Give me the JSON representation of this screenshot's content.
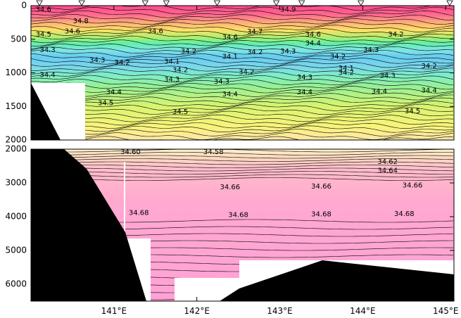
{
  "chart_data": [
    {
      "type": "heatmap",
      "panel": "upper",
      "y_range": [
        0,
        2000
      ],
      "y_ticks": [
        0,
        500,
        1000,
        1500,
        2000
      ],
      "y_tick_labels": [
        "0",
        "500",
        "1000",
        "1500",
        "2000"
      ],
      "x_range": [
        140.0,
        145.1
      ],
      "station_markers_count": 9,
      "contour_labels": [
        {
          "text": "34.6",
          "x": 140.15,
          "y": 60
        },
        {
          "text": "34.9",
          "x": 143.1,
          "y": 60
        },
        {
          "text": "34.8",
          "x": 140.6,
          "y": 230
        },
        {
          "text": "34.6",
          "x": 140.5,
          "y": 380
        },
        {
          "text": "34.5",
          "x": 140.15,
          "y": 430
        },
        {
          "text": "34.6",
          "x": 141.5,
          "y": 380
        },
        {
          "text": "34.7",
          "x": 142.7,
          "y": 390
        },
        {
          "text": "34.6",
          "x": 142.4,
          "y": 470
        },
        {
          "text": "34.6",
          "x": 143.4,
          "y": 430
        },
        {
          "text": "34.4",
          "x": 143.4,
          "y": 560
        },
        {
          "text": "34.2",
          "x": 144.4,
          "y": 430
        },
        {
          "text": "34.3",
          "x": 140.2,
          "y": 660
        },
        {
          "text": "34.2",
          "x": 141.9,
          "y": 680
        },
        {
          "text": "34.1",
          "x": 142.4,
          "y": 760
        },
        {
          "text": "34.2",
          "x": 142.7,
          "y": 690
        },
        {
          "text": "34.3",
          "x": 143.1,
          "y": 680
        },
        {
          "text": "34.2",
          "x": 143.7,
          "y": 760
        },
        {
          "text": "34.3",
          "x": 144.1,
          "y": 660
        },
        {
          "text": "34.3",
          "x": 140.8,
          "y": 810
        },
        {
          "text": "34.2",
          "x": 141.1,
          "y": 850
        },
        {
          "text": "34.1",
          "x": 141.7,
          "y": 830
        },
        {
          "text": "34.2",
          "x": 141.8,
          "y": 960
        },
        {
          "text": "34.2",
          "x": 142.6,
          "y": 990
        },
        {
          "text": "34.1",
          "x": 143.8,
          "y": 930
        },
        {
          "text": "34.2",
          "x": 144.8,
          "y": 900
        },
        {
          "text": "34.2",
          "x": 143.8,
          "y": 1000
        },
        {
          "text": "34.3",
          "x": 141.7,
          "y": 1100
        },
        {
          "text": "34.3",
          "x": 142.3,
          "y": 1130
        },
        {
          "text": "34.3",
          "x": 143.3,
          "y": 1070
        },
        {
          "text": "34.3",
          "x": 144.3,
          "y": 1040
        },
        {
          "text": "34.4",
          "x": 140.2,
          "y": 1030
        },
        {
          "text": "34.4",
          "x": 141.0,
          "y": 1290
        },
        {
          "text": "34.4",
          "x": 142.4,
          "y": 1320
        },
        {
          "text": "34.4",
          "x": 143.3,
          "y": 1290
        },
        {
          "text": "34.4",
          "x": 144.2,
          "y": 1280
        },
        {
          "text": "34.4",
          "x": 144.8,
          "y": 1260
        },
        {
          "text": "34.5",
          "x": 140.9,
          "y": 1450
        },
        {
          "text": "34.5",
          "x": 141.8,
          "y": 1580
        },
        {
          "text": "34.5",
          "x": 144.6,
          "y": 1570
        }
      ]
    },
    {
      "type": "heatmap",
      "panel": "lower",
      "y_range": [
        2000,
        6500
      ],
      "y_ticks": [
        2000,
        3000,
        4000,
        5000,
        6000
      ],
      "y_tick_labels": [
        "2000",
        "3000",
        "4000",
        "5000",
        "6000"
      ],
      "x_range": [
        140.0,
        145.1
      ],
      "x_ticks": [
        141,
        142,
        143,
        144,
        145
      ],
      "x_tick_labels": [
        "141°E",
        "142°E",
        "143°E",
        "144°E",
        "145°E"
      ],
      "contour_labels": [
        {
          "text": "34.60",
          "x": 141.2,
          "y": 2080
        },
        {
          "text": "34.58",
          "x": 142.2,
          "y": 2080
        },
        {
          "text": "34.62",
          "x": 144.3,
          "y": 2380
        },
        {
          "text": "34.64",
          "x": 144.3,
          "y": 2640
        },
        {
          "text": "34.66",
          "x": 142.4,
          "y": 3130
        },
        {
          "text": "34.66",
          "x": 143.5,
          "y": 3100
        },
        {
          "text": "34.66",
          "x": 144.6,
          "y": 3070
        },
        {
          "text": "34.68",
          "x": 141.3,
          "y": 3890
        },
        {
          "text": "34.68",
          "x": 142.5,
          "y": 3950
        },
        {
          "text": "34.68",
          "x": 143.5,
          "y": 3930
        },
        {
          "text": "34.68",
          "x": 144.5,
          "y": 3920
        }
      ]
    }
  ]
}
